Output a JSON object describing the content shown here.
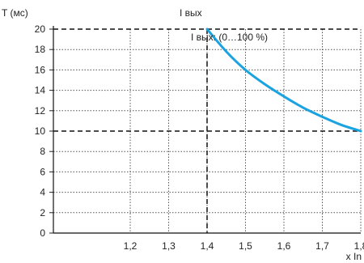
{
  "chart_data": {
    "type": "line",
    "ylabel": "T (мс)",
    "xlabel": "x In",
    "xlim": [
      1.0,
      1.8
    ],
    "ylim": [
      0,
      20
    ],
    "x_ticks": [
      1.2,
      1.3,
      1.4,
      1.5,
      1.6,
      1.7,
      1.8
    ],
    "x_tick_labels": [
      "1,2",
      "1,3",
      "1,4",
      "1,5",
      "1,6",
      "1,7",
      "1,8"
    ],
    "y_ticks": [
      0,
      2,
      4,
      6,
      8,
      10,
      12,
      14,
      16,
      18,
      20
    ],
    "y_tick_labels": [
      "0",
      "2",
      "4",
      "6",
      "8",
      "10",
      "12",
      "14",
      "16",
      "18",
      "20"
    ],
    "grid": true,
    "series": [
      {
        "color": "#1aa3e0",
        "x": [
          1.4,
          1.45,
          1.5,
          1.55,
          1.6,
          1.65,
          1.7,
          1.75,
          1.8
        ],
        "y": [
          20.0,
          17.8,
          16.0,
          14.6,
          13.4,
          12.3,
          11.4,
          10.6,
          10.0
        ]
      }
    ],
    "reference_lines": {
      "vertical_x": 1.4,
      "vertical_label": "I вых",
      "horizontal_y": [
        10,
        20
      ]
    },
    "annotations": [
      "I вых: (0…100 %)"
    ]
  }
}
